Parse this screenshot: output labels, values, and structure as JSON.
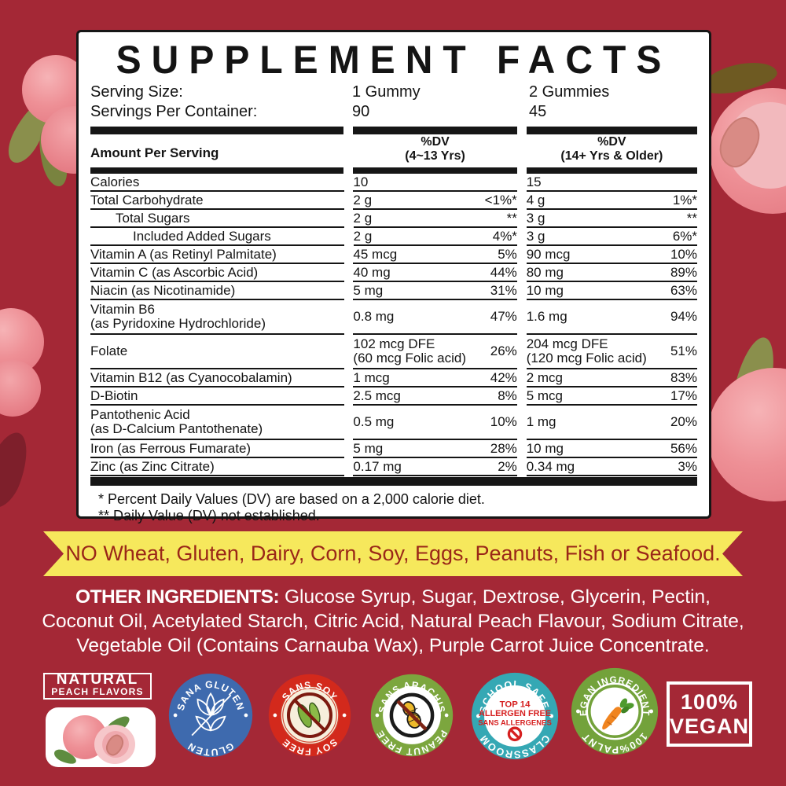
{
  "colors": {
    "background": "#A42836",
    "panel_bg": "#FFFFFF",
    "ink": "#161616",
    "banner_bg": "#F6E85C",
    "banner_text": "#9A2718",
    "white": "#FFFFFF"
  },
  "panel": {
    "title": "SUPPLEMENT FACTS",
    "serving": {
      "size_label": "Serving Size:",
      "per_container_label": "Servings Per Container:",
      "col1_size": "1 Gummy",
      "col1_servings": "90",
      "col2_size": "2 Gummies",
      "col2_servings": "45"
    },
    "table": {
      "header": {
        "amount": "Amount Per Serving",
        "col1_dv_line1": "%DV",
        "col1_dv_line2": "(4~13 Yrs)",
        "col2_dv_line1": "%DV",
        "col2_dv_line2": "(14+ Yrs & Older)"
      },
      "rows": [
        {
          "label": "Calories",
          "indent": 0,
          "amount1": "10",
          "dv1": "",
          "amount2": "15",
          "dv2": ""
        },
        {
          "label": "Total Carbohydrate",
          "indent": 0,
          "amount1": "2 g",
          "dv1": "<1%*",
          "amount2": "4 g",
          "dv2": "1%*"
        },
        {
          "label": "Total Sugars",
          "indent": 1,
          "amount1": "2 g",
          "dv1": "**",
          "amount2": "3 g",
          "dv2": "**"
        },
        {
          "label": "Included Added Sugars",
          "indent": 2,
          "amount1": "2 g",
          "dv1": "4%*",
          "amount2": "3 g",
          "dv2": "6%*"
        },
        {
          "label": "Vitamin A (as Retinyl Palmitate)",
          "indent": 0,
          "amount1": "45 mcg",
          "dv1": "5%",
          "amount2": "90 mcg",
          "dv2": "10%"
        },
        {
          "label": "Vitamin C (as Ascorbic Acid)",
          "indent": 0,
          "amount1": "40 mg",
          "dv1": "44%",
          "amount2": "80 mg",
          "dv2": "89%"
        },
        {
          "label": "Niacin (as Nicotinamide)",
          "indent": 0,
          "amount1": "5 mg",
          "dv1": "31%",
          "amount2": "10 mg",
          "dv2": "63%"
        },
        {
          "label": "Vitamin B6\n(as Pyridoxine Hydrochloride)",
          "indent": 0,
          "amount1": "0.8 mg",
          "dv1": "47%",
          "amount2": "1.6 mg",
          "dv2": "94%"
        },
        {
          "label": "Folate",
          "indent": 0,
          "amount1": "102 mcg DFE\n(60 mcg Folic acid)",
          "dv1": "26%",
          "amount2": "204 mcg DFE\n(120 mcg Folic acid)",
          "dv2": "51%"
        },
        {
          "label": "Vitamin B12 (as Cyanocobalamin)",
          "indent": 0,
          "amount1": "1 mcg",
          "dv1": "42%",
          "amount2": "2 mcg",
          "dv2": "83%"
        },
        {
          "label": "D-Biotin",
          "indent": 0,
          "amount1": "2.5 mcg",
          "dv1": "8%",
          "amount2": "5 mcg",
          "dv2": "17%"
        },
        {
          "label": "Pantothenic Acid\n(as D-Calcium Pantothenate)",
          "indent": 0,
          "amount1": "0.5 mg",
          "dv1": "10%",
          "amount2": "1 mg",
          "dv2": "20%"
        },
        {
          "label": "Iron (as Ferrous Fumarate)",
          "indent": 0,
          "amount1": "5 mg",
          "dv1": "28%",
          "amount2": "10 mg",
          "dv2": "56%"
        },
        {
          "label": "Zinc (as Zinc Citrate)",
          "indent": 0,
          "amount1": "0.17 mg",
          "dv1": "2%",
          "amount2": "0.34 mg",
          "dv2": "3%"
        }
      ]
    },
    "footnotes": [
      "* Percent Daily Values (DV) are based on a 2,000 calorie diet.",
      "** Daily Value (DV) not established."
    ]
  },
  "banner": {
    "text": "NO Wheat, Gluten, Dairy, Corn, Soy, Eggs, Peanuts, Fish or Seafood."
  },
  "other_ingredients": {
    "label": "OTHER INGREDIENTS:",
    "text": " Glucose Syrup, Sugar, Dextrose, Glycerin, Pectin, Coconut Oil, Acetylated Starch, Citric Acid, Natural Peach Flavour, Sodium Citrate, Vegetable Oil (Contains Carnauba Wax), Purple Carrot Juice Concentrate."
  },
  "badges": {
    "natural": {
      "line1": "NATURAL",
      "line2": "PEACH FLAVORS"
    },
    "gluten": {
      "top": "SANA GLUTEN",
      "bottom": "GLUTEN",
      "color": "#3E6AAE"
    },
    "soy": {
      "top": "SANS SOY",
      "bottom": "SOY FREE",
      "color": "#D3291C"
    },
    "peanut": {
      "top": "SANS ARACHIS",
      "bottom": "PEANUT FREE",
      "color": "#7CA63E"
    },
    "school": {
      "top": "SCHOOL SAFE.",
      "bottom": "CLASSROOM",
      "color": "#35A8B4",
      "center_line1": "TOP 14",
      "center_line2": "ALLERGEN FREE",
      "center_line3": "SANS ALLERGENES"
    },
    "vegan_ingredients": {
      "top": "VEGAN INGREDIENTS",
      "bottom": "100%PALNT",
      "color": "#73A23B"
    },
    "vegan_box": {
      "line1": "100%",
      "line2": "VEGAN"
    }
  }
}
